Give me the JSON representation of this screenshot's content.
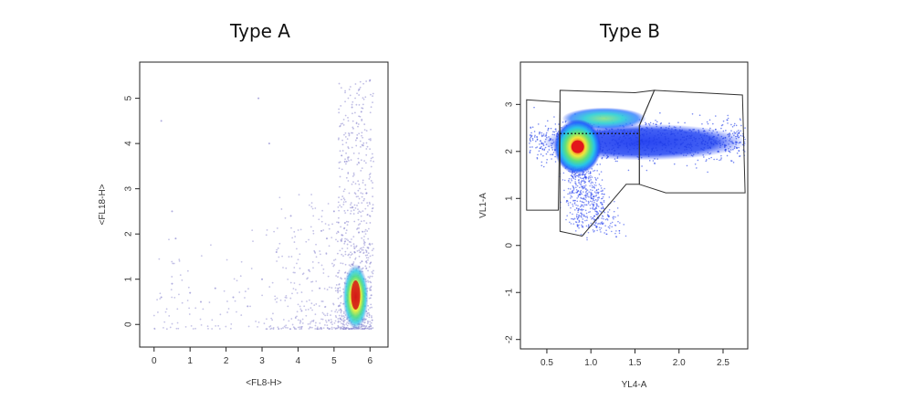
{
  "panels": [
    {
      "title": "Type A",
      "chart_data": {
        "type": "scatter",
        "title": "Type A",
        "xlabel": "<FL8-H>",
        "ylabel": "<FL18-H>",
        "xlim": [
          -0.4,
          6.5
        ],
        "ylim": [
          -0.5,
          5.8
        ],
        "xticks": [
          0,
          1,
          2,
          3,
          4,
          5,
          6
        ],
        "yticks": [
          0,
          1,
          2,
          3,
          4,
          5
        ],
        "density_coloring": true,
        "dense_region": {
          "x": 5.6,
          "y": 0.65
        },
        "sparse_points": [
          {
            "x": 0.2,
            "y": 4.5
          },
          {
            "x": 2.9,
            "y": 5.0
          },
          {
            "x": 3.2,
            "y": 4.0
          },
          {
            "x": 0.5,
            "y": 2.5
          },
          {
            "x": 0.6,
            "y": 1.9
          },
          {
            "x": 0.5,
            "y": 0.9
          },
          {
            "x": 0.2,
            "y": 0.6
          },
          {
            "x": 1.0,
            "y": 0.7
          },
          {
            "x": 1.3,
            "y": 0.5
          },
          {
            "x": 1.7,
            "y": 0.8
          },
          {
            "x": 2.2,
            "y": 0.6
          },
          {
            "x": 2.6,
            "y": 0.4
          },
          {
            "x": 3.0,
            "y": 1.0
          },
          {
            "x": 3.4,
            "y": 1.6
          },
          {
            "x": 3.8,
            "y": 2.4
          },
          {
            "x": 4.1,
            "y": 0.3
          },
          {
            "x": 4.3,
            "y": 1.2
          },
          {
            "x": 4.6,
            "y": 0.8
          },
          {
            "x": 4.8,
            "y": 1.9
          },
          {
            "x": 5.0,
            "y": 2.5
          },
          {
            "x": 5.2,
            "y": 0.3
          },
          {
            "x": 5.3,
            "y": 3.6
          },
          {
            "x": 5.5,
            "y": 4.8
          },
          {
            "x": 5.7,
            "y": 5.2
          },
          {
            "x": 5.9,
            "y": 2.9
          },
          {
            "x": 6.0,
            "y": 5.4
          },
          {
            "x": 5.8,
            "y": 0.1
          }
        ]
      }
    },
    {
      "title": "Type B",
      "chart_data": {
        "type": "scatter",
        "title": "Type B",
        "xlabel": "YL4-A",
        "ylabel": "VL1-A",
        "xlim": [
          0.2,
          2.78
        ],
        "ylim": [
          -2.2,
          3.9
        ],
        "xticks": [
          0.5,
          1.0,
          1.5,
          2.0,
          2.5
        ],
        "xticklabels": [
          "0.5",
          "1.0",
          "1.5",
          "2.0",
          "2.5"
        ],
        "yticks": [
          -2,
          -1,
          0,
          1,
          2,
          3
        ],
        "density_coloring": true,
        "dense_region": {
          "x": 0.85,
          "y": 2.1
        },
        "secondary_region": {
          "x": 1.15,
          "y": 2.7
        },
        "gates": [
          [
            [
              0.27,
              3.1
            ],
            [
              0.65,
              3.05
            ],
            [
              0.63,
              0.75
            ],
            [
              0.27,
              0.75
            ]
          ],
          [
            [
              0.65,
              3.3
            ],
            [
              1.5,
              3.25
            ],
            [
              1.72,
              3.3
            ],
            [
              1.55,
              2.55
            ],
            [
              1.55,
              1.3
            ],
            [
              1.4,
              1.3
            ],
            [
              0.9,
              0.2
            ],
            [
              0.65,
              0.3
            ]
          ],
          [
            [
              1.55,
              2.55
            ],
            [
              1.72,
              3.3
            ],
            [
              2.72,
              3.2
            ],
            [
              2.75,
              1.12
            ],
            [
              1.85,
              1.12
            ],
            [
              1.55,
              1.3
            ]
          ]
        ],
        "threshold_line": {
          "y": 2.38,
          "x_start": 0.65,
          "x_end": 1.55
        }
      }
    }
  ],
  "colors": {
    "scale": [
      "#1b1bd6",
      "#2a7bff",
      "#28d1e0",
      "#55e07a",
      "#e8ef3c",
      "#f59a23",
      "#e6261f"
    ],
    "sparse": "#8c88d0",
    "axis": "#222222",
    "gate": "#333333"
  }
}
